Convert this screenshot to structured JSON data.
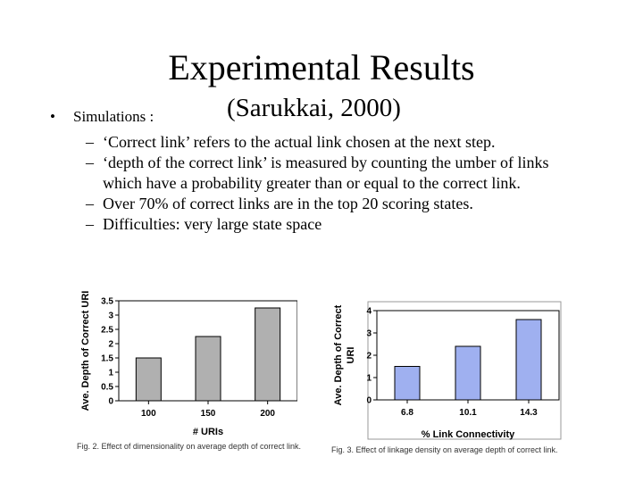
{
  "slide": {
    "title": "Experimental Results",
    "bullet_marker": "•",
    "bullet": "Simulations :",
    "citation": "(Sarukkai, 2000)",
    "dash": "–",
    "sub_bullets": [
      "‘Correct link’ refers to the actual link chosen at the next step.",
      "‘depth of the correct link’ is measured by counting the umber of links which have a probability greater than or equal to the correct link.",
      "Over 70% of correct links are in the top 20 scoring states.",
      "Difficulties: very large state space"
    ]
  },
  "chart_data": [
    {
      "type": "bar",
      "categories": [
        "100",
        "150",
        "200"
      ],
      "values": [
        1.5,
        2.25,
        3.25
      ],
      "xlabel": "# URIs",
      "ylabel": "Ave. Depth of Correct URI",
      "ylim": [
        0,
        3.5
      ],
      "yticks": [
        "0",
        "0.5",
        "1",
        "1.5",
        "2",
        "2.5",
        "3",
        "3.5"
      ],
      "ytick_values": [
        0,
        0.5,
        1,
        1.5,
        2,
        2.5,
        3,
        3.5
      ],
      "bar_color": "#b0b0b0",
      "plot_bg": "#ffffff",
      "caption": "Fig. 2. Effect of dimensionality on average depth of correct link."
    },
    {
      "type": "bar",
      "categories": [
        "6.8",
        "10.1",
        "14.3"
      ],
      "values": [
        1.5,
        2.4,
        3.6
      ],
      "xlabel": "% Link Connectivity",
      "ylabel": "Ave. Depth of Correct URI",
      "ylim": [
        0,
        4
      ],
      "yticks": [
        "0",
        "1",
        "2",
        "3",
        "4"
      ],
      "ytick_values": [
        0,
        1,
        2,
        3,
        4
      ],
      "bar_color": "#9fb0f0",
      "plot_bg": "#ffffff",
      "caption": "Fig. 3. Effect of linkage density on average depth of correct link."
    }
  ]
}
